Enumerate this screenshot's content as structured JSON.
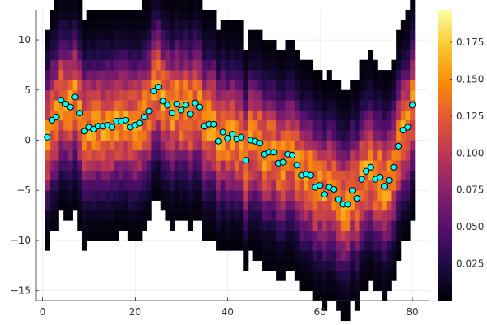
{
  "chart_data": {
    "type": "heatmap",
    "title": "",
    "xlabel": "",
    "ylabel": "",
    "grid": true,
    "legend": "none",
    "xlim": [
      -1.5,
      83.5
    ],
    "ylim": [
      -16,
      13
    ],
    "xticks": [
      0,
      20,
      40,
      60,
      80
    ],
    "yticks": [
      -15,
      -10,
      -5,
      0,
      5,
      10
    ],
    "xtick_labels": [
      "0",
      "20",
      "40",
      "60",
      "80"
    ],
    "ytick_labels": [
      "−15",
      "−10",
      "−5",
      "0",
      "5",
      "10"
    ],
    "colorbar": {
      "colormap": "inferno",
      "range": [
        0.0,
        0.197
      ],
      "ticks": [
        0.025,
        0.05,
        0.075,
        0.1,
        0.125,
        0.15,
        0.175
      ],
      "tick_labels": [
        "0.025",
        "0.050",
        "0.075",
        "0.100",
        "0.125",
        "0.150",
        "0.175"
      ]
    },
    "heatmap": {
      "x_bins": "integers 1 to 80",
      "y_bin_size": 1,
      "description": "density per column, centered on the scatter series, spread ~4 units",
      "center": [
        0.3,
        2.0,
        2.3,
        4.0,
        3.6,
        3.3,
        4.3,
        2.7,
        0.9,
        1.3,
        1.1,
        1.4,
        1.4,
        1.5,
        1.3,
        1.9,
        1.9,
        2.0,
        1.3,
        1.5,
        1.7,
        2.3,
        2.9,
        4.9,
        5.3,
        3.9,
        3.5,
        2.7,
        3.6,
        3.0,
        3.5,
        2.6,
        3.7,
        3.3,
        1.4,
        1.6,
        1.6,
        -0.1,
        0.8,
        0.2,
        0.6,
        0.1,
        0.3,
        -2.0,
        0.0,
        -0.1,
        -0.3,
        -1.4,
        -1.2,
        -1.2,
        -2.3,
        -2.2,
        -1.4,
        -1.5,
        -2.5,
        -3.5,
        -3.4,
        -3.5,
        -4.7,
        -4.5,
        -5.4,
        -4.7,
        -4.9,
        -5.9,
        -6.4,
        -6.4,
        -5.0,
        -5.8,
        -3.9,
        -3.1,
        -2.7,
        -3.9,
        -3.7,
        -4.6,
        -4.0,
        -2.7,
        -0.6,
        1.0,
        1.3,
        3.5
      ]
    },
    "series": [
      {
        "x": [
          1,
          2,
          3,
          4,
          5,
          6,
          7,
          8,
          9,
          10,
          11,
          12,
          13,
          14,
          15,
          16,
          17,
          18,
          19,
          20,
          21,
          22,
          23,
          24,
          25,
          26,
          27,
          28,
          29,
          30,
          31,
          32,
          33,
          34,
          35,
          36,
          37,
          38,
          39,
          40,
          41,
          42,
          43,
          44,
          45,
          46,
          47,
          48,
          49,
          50,
          51,
          52,
          53,
          54,
          55,
          56,
          57,
          58,
          59,
          60,
          61,
          62,
          63,
          64,
          65,
          66,
          67,
          68,
          69,
          70,
          71,
          72,
          73,
          74,
          75,
          76,
          77,
          78,
          79,
          80
        ],
        "y": [
          0.3,
          2.0,
          2.3,
          4.0,
          3.6,
          3.3,
          4.3,
          2.7,
          0.9,
          1.3,
          1.1,
          1.4,
          1.4,
          1.5,
          1.3,
          1.9,
          1.9,
          2.0,
          1.3,
          1.5,
          1.7,
          2.3,
          2.9,
          4.9,
          5.3,
          3.9,
          3.5,
          2.7,
          3.6,
          3.0,
          3.5,
          2.6,
          3.7,
          3.3,
          1.4,
          1.6,
          1.6,
          -0.1,
          0.8,
          0.2,
          0.6,
          0.1,
          0.3,
          -2.0,
          0.0,
          -0.1,
          -0.3,
          -1.4,
          -1.2,
          -1.2,
          -2.3,
          -2.2,
          -1.4,
          -1.5,
          -2.5,
          -3.5,
          -3.4,
          -3.5,
          -4.7,
          -4.5,
          -5.4,
          -4.7,
          -4.9,
          -5.9,
          -6.4,
          -6.4,
          -5.0,
          -5.8,
          -3.9,
          -3.1,
          -2.7,
          -3.9,
          -3.7,
          -4.6,
          -4.0,
          -2.7,
          -0.6,
          1.0,
          1.3,
          3.5
        ],
        "color": "#00ffff"
      }
    ]
  }
}
